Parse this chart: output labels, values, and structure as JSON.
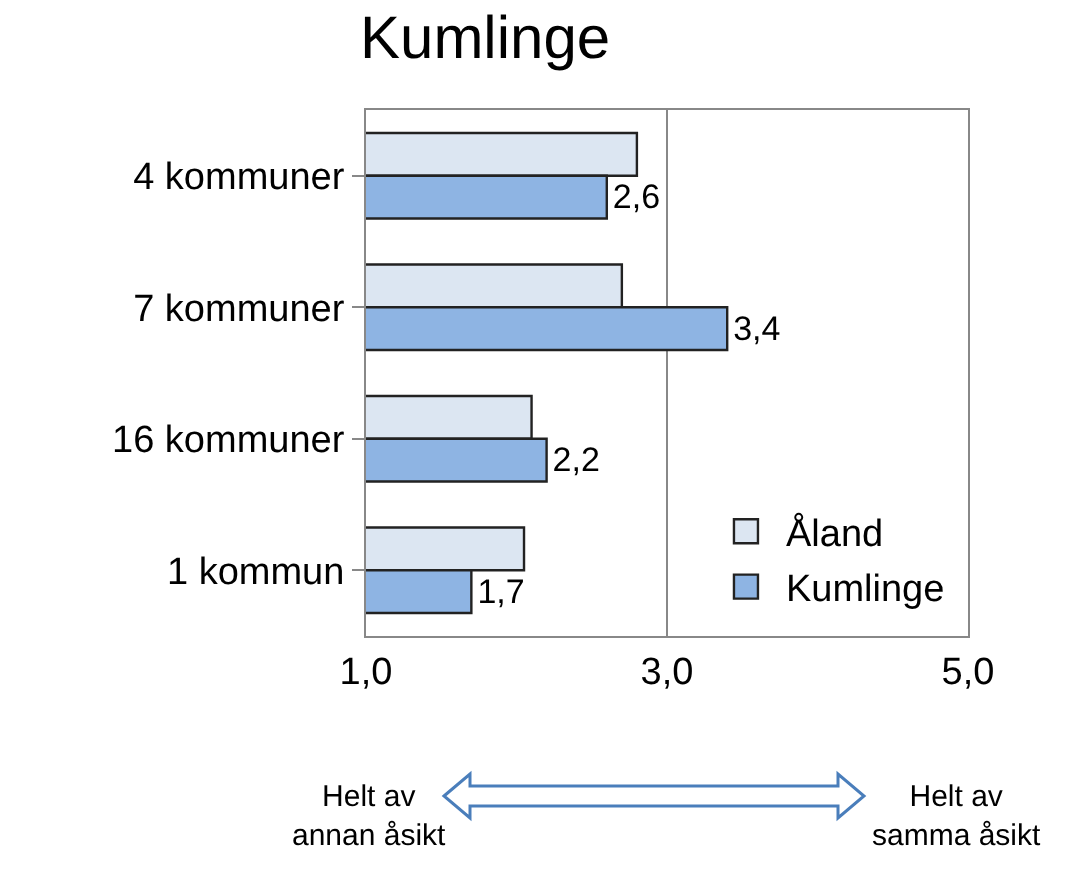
{
  "chart_data": {
    "type": "bar",
    "orientation": "horizontal",
    "title": "Kumlinge",
    "categories": [
      "4 kommuner",
      "7 kommuner",
      "16 kommuner",
      "1 kommun"
    ],
    "series": [
      {
        "name": "Åland",
        "color": "#dce6f2",
        "values": [
          2.8,
          2.7,
          2.1,
          2.05
        ]
      },
      {
        "name": "Kumlinge",
        "color": "#8eb4e3",
        "values": [
          2.6,
          3.4,
          2.2,
          1.7
        ],
        "value_labels": [
          "2,6",
          "3,4",
          "2,2",
          "1,7"
        ]
      }
    ],
    "xlim": [
      1,
      5
    ],
    "xticks": [
      {
        "value": 1,
        "label": "1,0"
      },
      {
        "value": 3,
        "label": "3,0"
      },
      {
        "value": 5,
        "label": "5,0"
      }
    ],
    "grid": "x",
    "legend": "bottom right",
    "annotations": [
      "Helt av\nannan åsikt",
      "Helt av\nsamma åsikt"
    ]
  }
}
